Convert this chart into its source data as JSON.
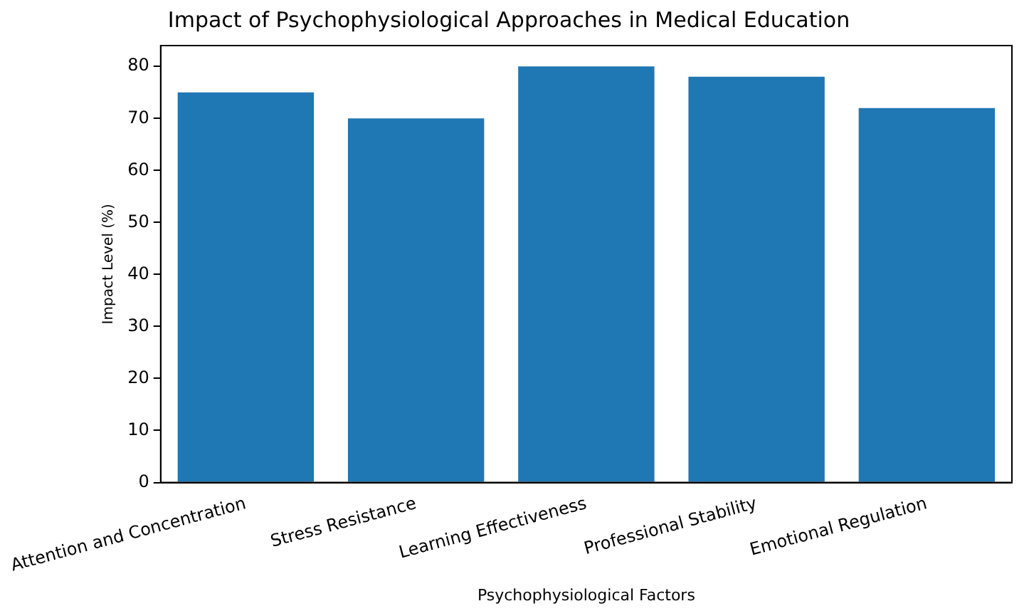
{
  "chart_data": {
    "type": "bar",
    "title": "Impact of Psychophysiological Approaches in Medical Education",
    "xlabel": "Psychophysiological Factors",
    "ylabel": "Impact Level (%)",
    "categories": [
      "Attention and Concentration",
      "Stress Resistance",
      "Learning Effectiveness",
      "Professional Stability",
      "Emotional Regulation"
    ],
    "values": [
      75,
      70,
      80,
      78,
      72
    ],
    "color": "#1f77b4",
    "ylim": [
      0,
      84
    ],
    "yticks": [
      0,
      10,
      20,
      30,
      40,
      50,
      60,
      70,
      80
    ],
    "grid": false,
    "legend": false
  }
}
